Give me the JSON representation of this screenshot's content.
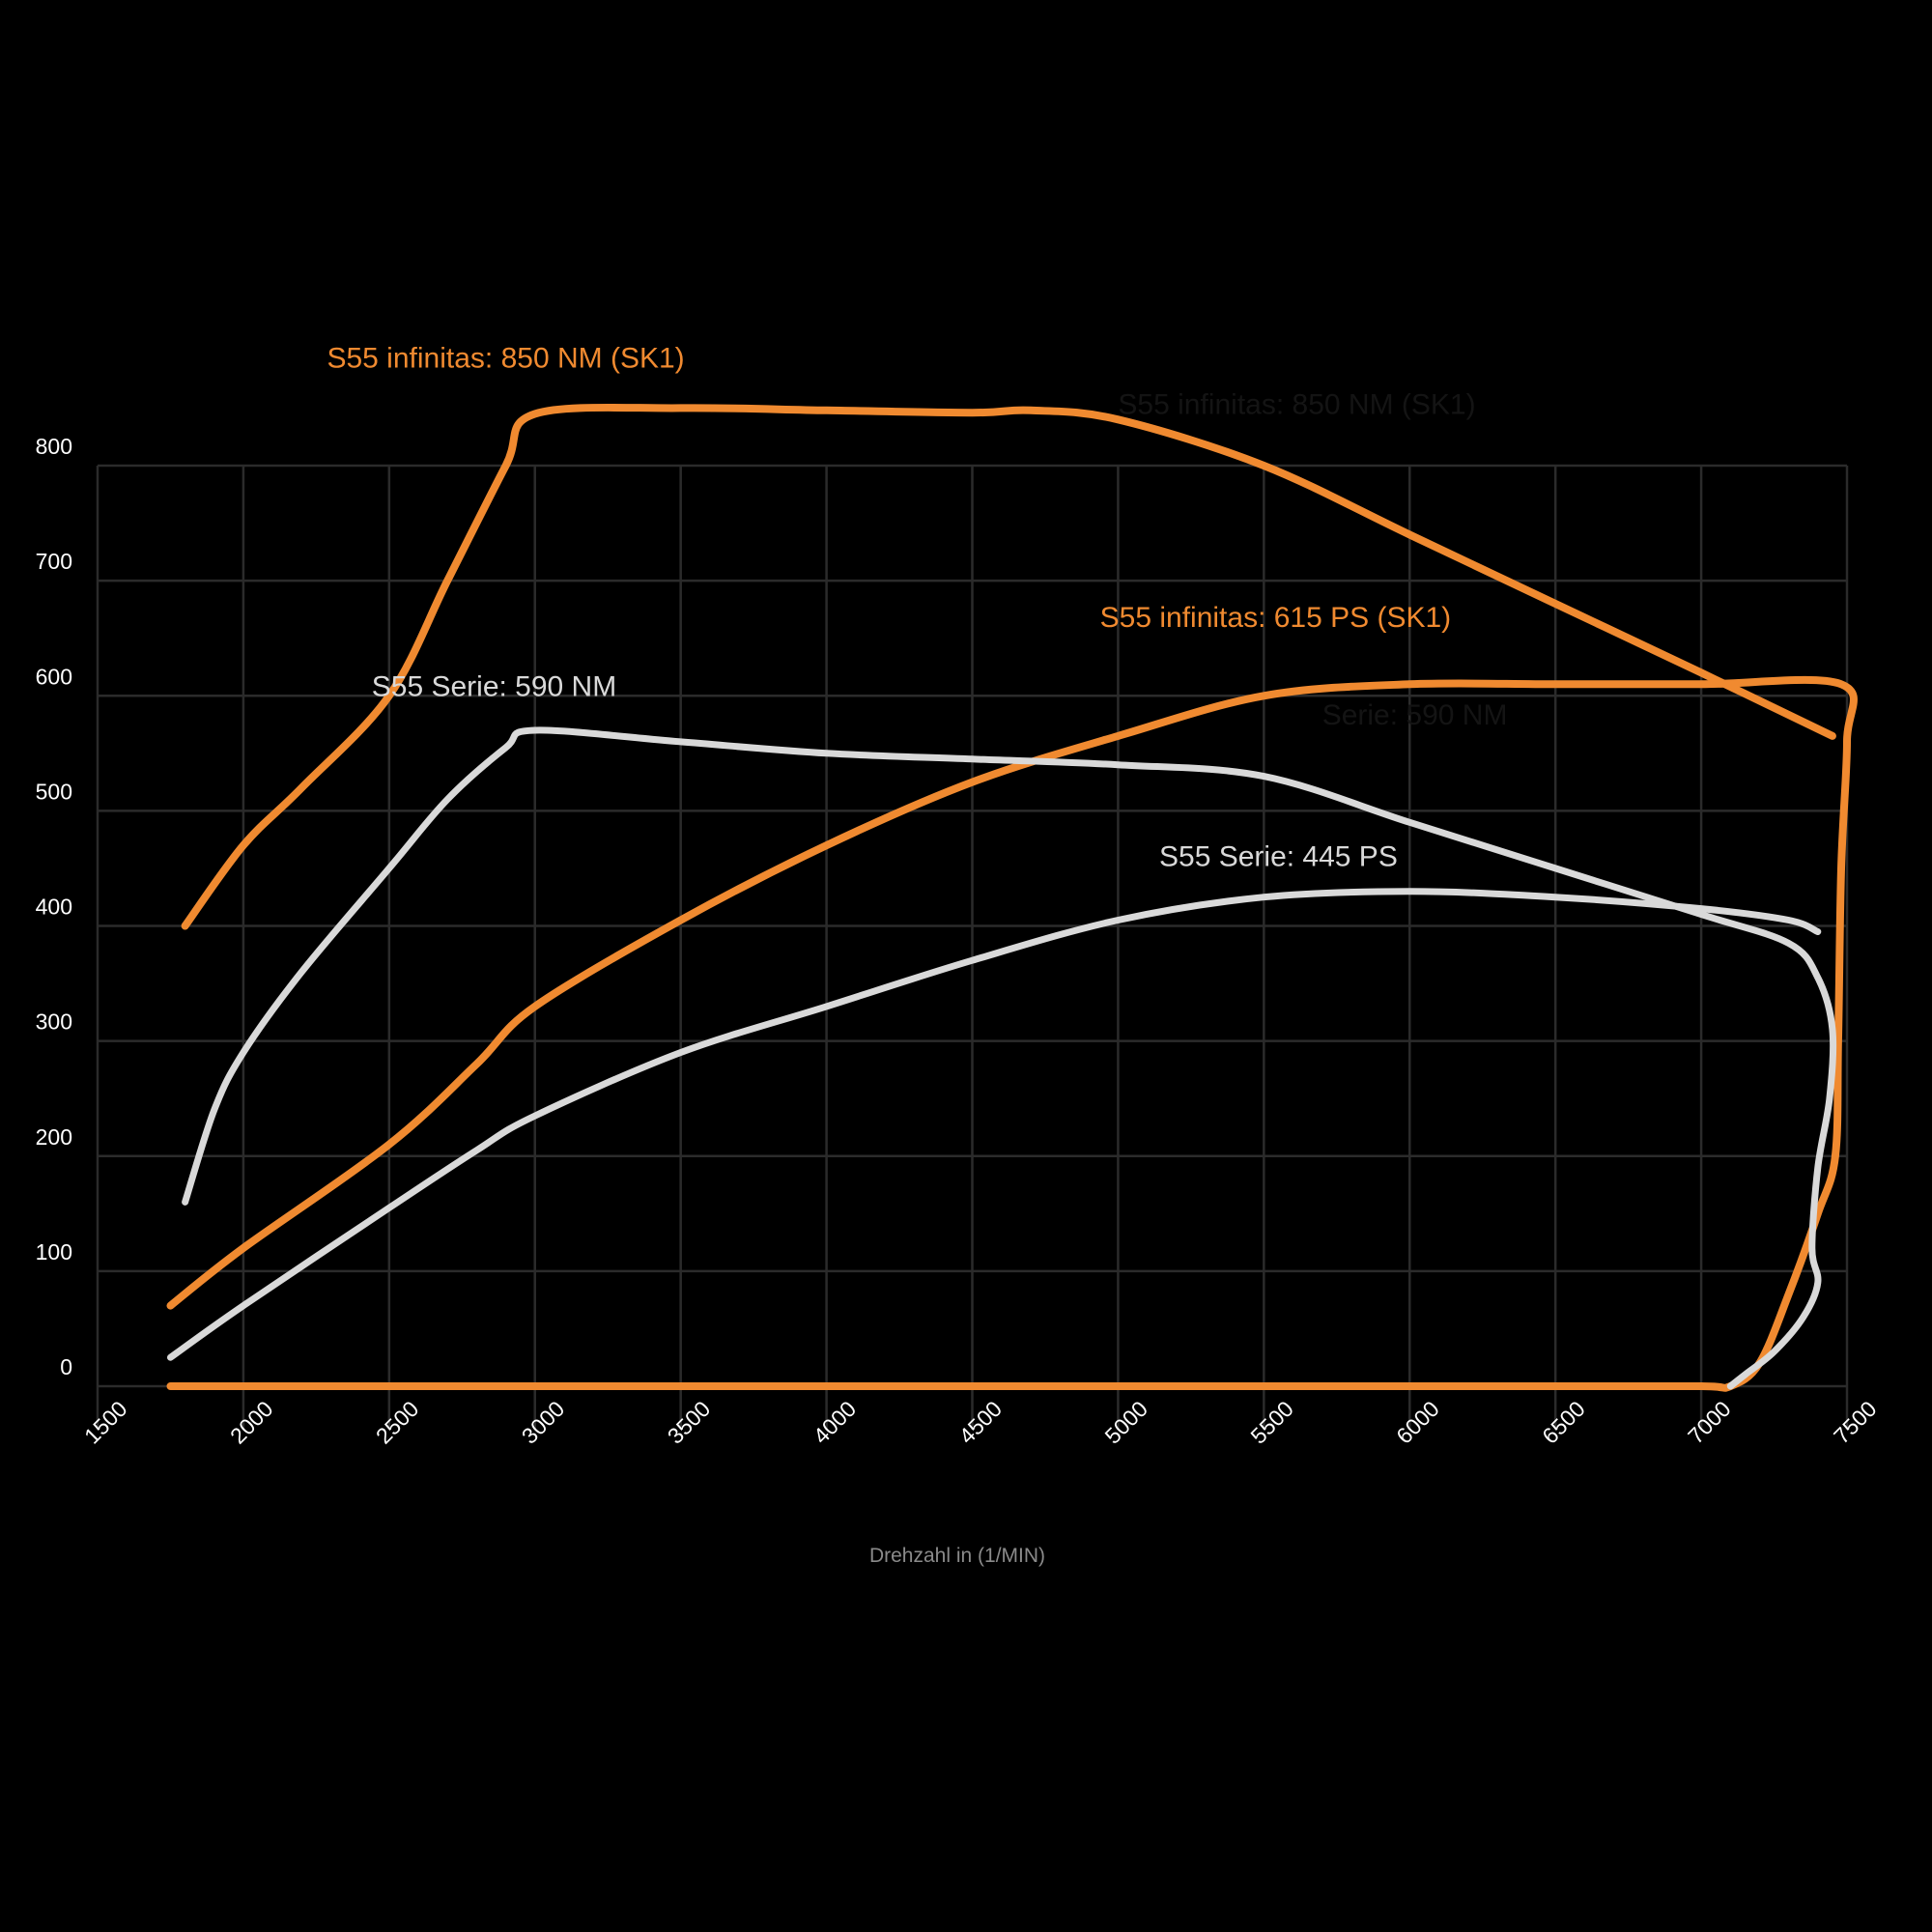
{
  "chart_data": {
    "type": "line",
    "xlabel": "Drehzahl in (1/MIN)",
    "ylabel": "",
    "xlim": [
      1500,
      7500
    ],
    "ylim": [
      0,
      800
    ],
    "x_ticks": [
      1500,
      2000,
      2500,
      3000,
      3500,
      4000,
      4500,
      5000,
      5500,
      6000,
      6500,
      7000,
      7500
    ],
    "y_ticks": [
      0,
      100,
      200,
      300,
      400,
      500,
      600,
      700,
      800
    ],
    "grid": true,
    "legend": "inline labels",
    "colors": {
      "infinitas": "#f08a30",
      "serie": "#d9d9d9",
      "grid": "#2b2b2b",
      "background": "#000000"
    },
    "ghost_labels": [
      "S55 infinitas: 850 NM (SK1)",
      "Serie: 590 NM"
    ],
    "series": [
      {
        "name": "S55 infinitas: 850 NM (SK1)",
        "color": "#f08a30",
        "x": [
          1800,
          2000,
          2200,
          2500,
          2700,
          2900,
          3000,
          3500,
          4000,
          4500,
          4700,
          5000,
          5500,
          6000,
          6500,
          7000,
          7450
        ],
        "y": [
          400,
          470,
          520,
          600,
          700,
          800,
          845,
          850,
          848,
          846,
          848,
          840,
          800,
          740,
          680,
          620,
          565
        ]
      },
      {
        "name": "S55 infinitas: 615 PS (SK1)",
        "color": "#f08a30",
        "x": [
          1750,
          2000,
          2500,
          2800,
          3000,
          3500,
          4000,
          4500,
          5000,
          5500,
          6000,
          6500,
          7000,
          7480,
          7500,
          7480,
          7470,
          7460,
          7400,
          7300,
          7200,
          7100,
          7000,
          6500,
          6000,
          5000,
          4000,
          3000,
          2000,
          1750
        ],
        "y": [
          70,
          120,
          210,
          280,
          330,
          405,
          470,
          525,
          565,
          600,
          610,
          610,
          610,
          610,
          560,
          450,
          300,
          200,
          150,
          80,
          20,
          0,
          0,
          0,
          0,
          0,
          0,
          0,
          0,
          0
        ]
      },
      {
        "name": "S55 Serie: 590 NM",
        "color": "#d9d9d9",
        "x": [
          1800,
          1900,
          2000,
          2200,
          2500,
          2700,
          2900,
          3000,
          3500,
          4000,
          4500,
          5000,
          5500,
          6000,
          6500,
          7000,
          7300,
          7400,
          7450,
          7440,
          7400,
          7380,
          7400,
          7350,
          7250,
          7150,
          7100
        ],
        "y": [
          160,
          240,
          290,
          360,
          450,
          510,
          555,
          570,
          560,
          550,
          545,
          540,
          530,
          490,
          450,
          410,
          385,
          355,
          310,
          250,
          190,
          120,
          90,
          60,
          30,
          10,
          0
        ]
      },
      {
        "name": "S55 Serie: 445 PS",
        "color": "#d9d9d9",
        "x": [
          1750,
          2000,
          2500,
          2800,
          3000,
          3500,
          4000,
          4500,
          5000,
          5500,
          6000,
          6500,
          7000,
          7300,
          7400
        ],
        "y": [
          25,
          70,
          155,
          205,
          235,
          290,
          330,
          370,
          405,
          425,
          430,
          425,
          415,
          405,
          395
        ]
      }
    ],
    "labels": [
      {
        "text": "S55 infinitas: 850 NM (SK1)",
        "color": "#f08a30",
        "x": 2900,
        "y": 885
      },
      {
        "text": "S55 infinitas: 615 PS (SK1)",
        "color": "#f08a30",
        "x": 5540,
        "y": 660
      },
      {
        "text": "S55 Serie: 590 NM",
        "color": "#d9d9d9",
        "x": 2860,
        "y": 600
      },
      {
        "text": "S55 Serie: 445 PS",
        "color": "#d9d9d9",
        "x": 5550,
        "y": 452
      }
    ],
    "ghost_label_positions": [
      {
        "x": 5000,
        "y": 845
      },
      {
        "x": 5700,
        "y": 575
      }
    ]
  }
}
